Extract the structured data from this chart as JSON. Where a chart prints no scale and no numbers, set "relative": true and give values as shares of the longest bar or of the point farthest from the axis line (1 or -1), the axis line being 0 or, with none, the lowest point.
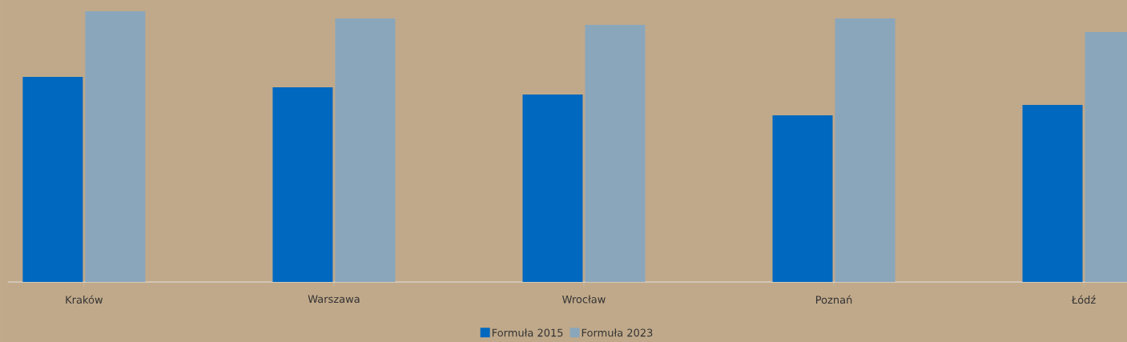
{
  "chart_data": {
    "type": "bar",
    "relative": true,
    "categories": [
      "Kraków",
      "Warszawa",
      "Wrocław",
      "Poznań",
      "Łódź"
    ],
    "series": [
      {
        "name": "Formuła 2015",
        "color": "#0068bf",
        "values": [
          0.757,
          0.719,
          0.692,
          0.615,
          0.654
        ]
      },
      {
        "name": "Formuła 2023",
        "color": "#8aa6bb",
        "values": [
          1.0,
          0.973,
          0.95,
          0.973,
          0.923
        ]
      }
    ],
    "legend": "bottom"
  }
}
